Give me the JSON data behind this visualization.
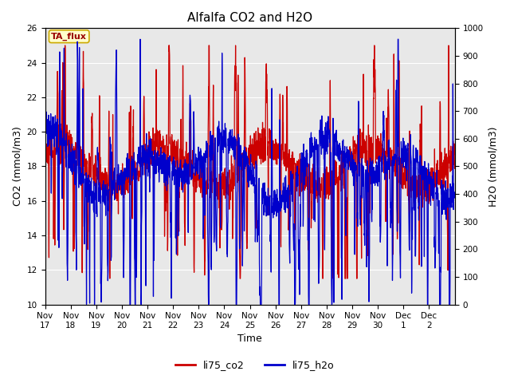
{
  "title": "Alfalfa CO2 and H2O",
  "xlabel": "Time",
  "ylabel_left": "CO2 (mmol/m3)",
  "ylabel_right": "H2O (mmol/m3)",
  "ylim_left": [
    10,
    26
  ],
  "ylim_right": [
    0,
    1000
  ],
  "yticks_left": [
    10,
    12,
    14,
    16,
    18,
    20,
    22,
    24,
    26
  ],
  "yticks_right": [
    0,
    100,
    200,
    300,
    400,
    500,
    600,
    700,
    800,
    900,
    1000
  ],
  "xtick_labels": [
    "Nov\n17",
    "Nov\n18",
    "Nov\n19",
    "Nov\n20",
    "Nov\n21",
    "Nov\n22",
    "Nov\n23",
    "Nov\n24",
    "Nov\n25",
    "Nov\n26",
    "Nov\n27",
    "Nov\n28",
    "Nov\n29",
    "Nov\n30",
    "Dec\n1",
    "Dec\n2"
  ],
  "color_co2": "#cc0000",
  "color_h2o": "#0000cc",
  "legend_co2": "li75_co2",
  "legend_h2o": "li75_h2o",
  "tag_label": "TA_flux",
  "tag_facecolor": "#ffffcc",
  "tag_edgecolor": "#ccaa00",
  "background_color": "#e8e8e8",
  "title_fontsize": 11,
  "axis_fontsize": 9,
  "tick_fontsize": 7.5,
  "linewidth_co2": 0.9,
  "linewidth_h2o": 0.9
}
